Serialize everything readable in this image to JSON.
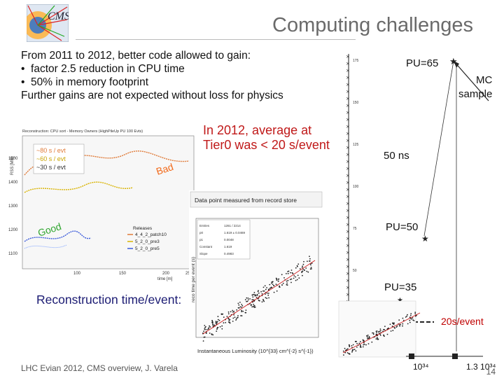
{
  "header": {
    "title": "Computing challenges"
  },
  "intro": {
    "heading": "From 2011 to 2012, better code allowed to gain:",
    "bullets": [
      "factor 2.5 reduction in CPU time",
      "50% in memory footprint"
    ],
    "closing": "Further gains are not expected without loss for physics"
  },
  "left_plot": {
    "title": "Reconstruction: CPU sort - Memory Owners (HighPileUp PU 100 Evts)",
    "ylabel": "RSS [MB]",
    "xlabel": "time [m]",
    "legend_lines": [
      "~80 s / evt",
      "~60 s / evt",
      "~30 s / evt"
    ],
    "bad_label": "Bad",
    "good_label": "Good",
    "releases_title": "Releases",
    "releases": [
      "4_4_2_patch10",
      "5_2_0_pre3",
      "5_2_0_pre5"
    ],
    "yticks": [
      "1500",
      "1400",
      "1300",
      "1200",
      "1100"
    ],
    "xticks": [
      "100",
      "150",
      "200",
      "250"
    ]
  },
  "annotation_2012": "In 2012, average at Tier0 was < 20 s/event",
  "data_point_note": "Data point measured from record store",
  "right_plot": {
    "xlabel": "Instantaneous Luminosity (10^{33} cm^{-2} s^{-1})",
    "ylabel": "reco time per event (s)",
    "stats": [
      [
        "Entries",
        "1261 / 2214"
      ],
      [
        "p0",
        "1.619 ± 0.0469"
      ],
      [
        "p1",
        "0.0048"
      ],
      [
        "Constant",
        "1.619"
      ],
      [
        "Slope",
        "0.4983"
      ]
    ]
  },
  "recon_label": "Reconstruction time/event:",
  "scale": {
    "pu65": "PU=65",
    "mc_lines": [
      "MC",
      "sample"
    ],
    "ns50": "50 ns",
    "pu50": "PU=50",
    "pu35": "PU=35",
    "event20": "20s/event",
    "lum1": "10³⁴",
    "lum2": "1.3 10³⁴",
    "axis_ticks": [
      "175",
      "150",
      "125",
      "100",
      "75",
      "50",
      "25"
    ]
  },
  "footer": {
    "text": "LHC Evian 2012, CMS overview, J. Varela",
    "page": "14"
  },
  "colors": {
    "title": "#6a6a6a",
    "accent_red": "#c01919",
    "recon_blue": "#1b1b73"
  }
}
